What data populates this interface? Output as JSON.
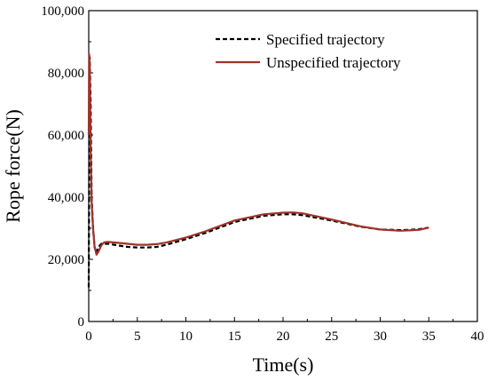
{
  "chart_data": {
    "type": "line",
    "xlabel": "Time(s)",
    "ylabel": "Rope force(N)",
    "xlim": [
      0,
      40
    ],
    "ylim": [
      0,
      100000
    ],
    "x_ticks": [
      0,
      5,
      10,
      15,
      20,
      25,
      30,
      35,
      40
    ],
    "y_ticks": [
      0,
      20000,
      40000,
      60000,
      80000,
      100000
    ],
    "x_tick_labels": [
      "0",
      "5",
      "10",
      "15",
      "20",
      "25",
      "30",
      "35",
      "40"
    ],
    "y_tick_labels": [
      "0",
      "20,000",
      "40,000",
      "60,000",
      "80,000",
      "100,000"
    ],
    "grid": false,
    "legend_position": "top-right",
    "series": [
      {
        "name": "Specified trajectory",
        "color": "#000000",
        "style": "dashed",
        "x": [
          0,
          0.1,
          0.2,
          0.3,
          0.45,
          0.6,
          0.8,
          1.0,
          1.3,
          1.6,
          2,
          3,
          4,
          5,
          6,
          7,
          8,
          10,
          12,
          15,
          18,
          20,
          21,
          22,
          25,
          28,
          30,
          32,
          33,
          34,
          35
        ],
        "y": [
          11000,
          85000,
          70000,
          40000,
          30000,
          24000,
          22000,
          24000,
          25000,
          25000,
          25000,
          24500,
          24000,
          23800,
          23800,
          24000,
          24700,
          26500,
          28500,
          32000,
          34000,
          34500,
          34500,
          34200,
          32500,
          30500,
          29600,
          29400,
          29500,
          29700,
          30200
        ]
      },
      {
        "name": "Unspecified trajectory",
        "color": "#a0322a",
        "style": "solid",
        "x": [
          0,
          0.05,
          0.1,
          0.2,
          0.3,
          0.45,
          0.6,
          0.8,
          1.0,
          1.3,
          1.6,
          2,
          3,
          4,
          5,
          6,
          7,
          8,
          10,
          12,
          15,
          18,
          20,
          21,
          22,
          25,
          28,
          30,
          32,
          33,
          34,
          35
        ],
        "y": [
          60000,
          86000,
          82000,
          55000,
          38000,
          30000,
          24000,
          21500,
          22500,
          24500,
          25500,
          25600,
          25300,
          25000,
          24700,
          24700,
          24900,
          25400,
          27000,
          29000,
          32500,
          34500,
          35000,
          35100,
          34800,
          32800,
          30600,
          29600,
          29200,
          29300,
          29500,
          30200
        ]
      }
    ]
  }
}
